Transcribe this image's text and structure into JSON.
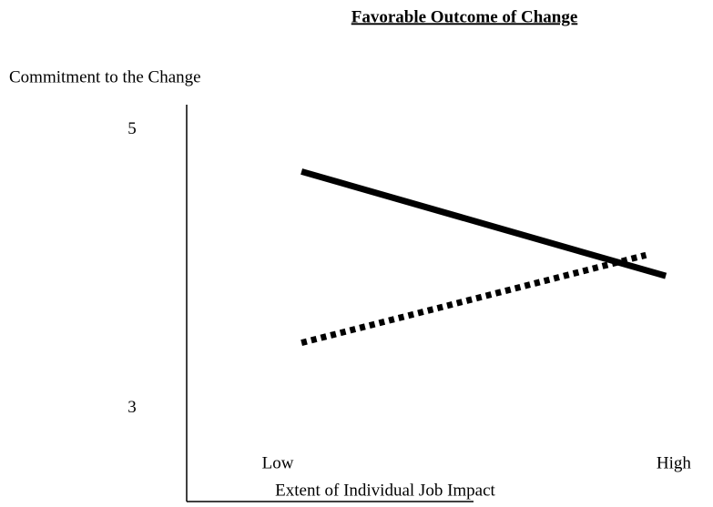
{
  "chart_data": {
    "type": "line",
    "title": "Favorable Outcome of Change",
    "y_label": "Commitment to the Change",
    "x_label": "Extent of Individual Job Impact",
    "ylim": [
      2.33,
      5.18
    ],
    "yticks": [
      3,
      5
    ],
    "xlim": [
      -0.23,
      1.09
    ],
    "xticks": [
      {
        "value": 0,
        "label": "Low"
      },
      {
        "value": 1,
        "label": "High"
      }
    ],
    "series": [
      {
        "color": "#000000",
        "dash": "solid",
        "x": [
          0.06,
          0.98
        ],
        "values": [
          4.7,
          3.95
        ]
      },
      {
        "color": "#000000",
        "dash": "dotted",
        "x": [
          0.06,
          0.93
        ],
        "values": [
          3.47,
          4.1
        ]
      }
    ]
  }
}
